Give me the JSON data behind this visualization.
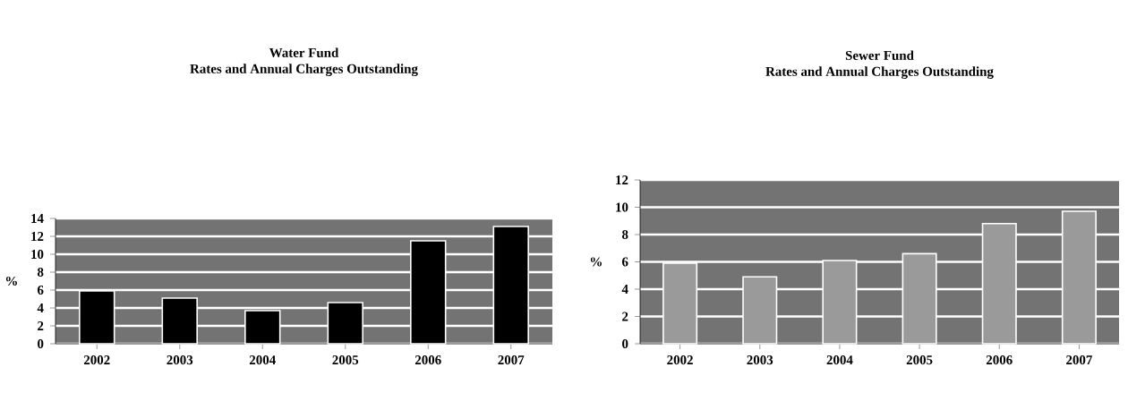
{
  "chart_data": [
    {
      "type": "bar",
      "title": "Water Fund",
      "subtitle": "Rates and Annual Charges Outstanding",
      "ylabel": "%",
      "categories": [
        "2002",
        "2003",
        "2004",
        "2005",
        "2006",
        "2007"
      ],
      "values": [
        5.9,
        5.1,
        3.7,
        4.6,
        11.5,
        13.1
      ],
      "color": "#000000",
      "ylim": [
        0,
        14
      ],
      "yticks": [
        0,
        2,
        4,
        6,
        8,
        10,
        12,
        14
      ],
      "grid": "y"
    },
    {
      "type": "bar",
      "title": "Sewer Fund",
      "subtitle": "Rates and Annual Charges Outstanding",
      "ylabel": "%",
      "categories": [
        "2002",
        "2003",
        "2004",
        "2005",
        "2006",
        "2007"
      ],
      "values": [
        5.9,
        4.9,
        6.1,
        6.6,
        8.8,
        9.7
      ],
      "color": "#9a9a9a",
      "ylim": [
        0,
        12
      ],
      "yticks": [
        0,
        2,
        4,
        6,
        8,
        10,
        12
      ],
      "grid": "y"
    }
  ]
}
